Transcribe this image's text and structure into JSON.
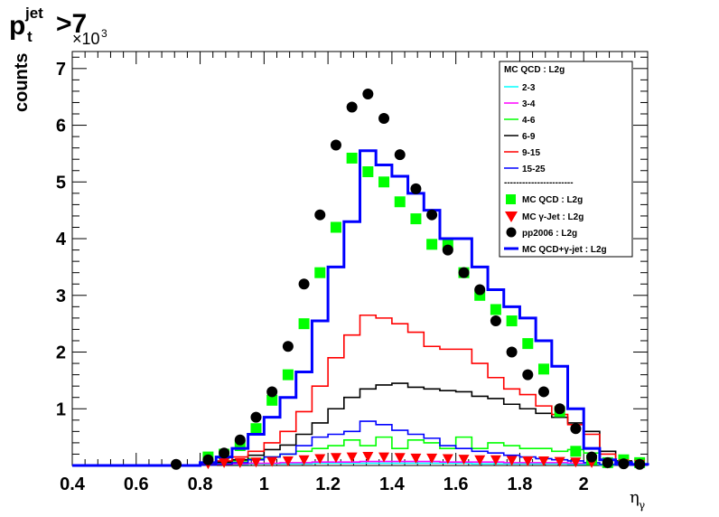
{
  "title": {
    "p": "p",
    "sup": "jet",
    "sub": "t",
    "suffix": ">7"
  },
  "colors": {
    "cyan": "#00ffff",
    "magenta": "#ff00ff",
    "green": "#00ff00",
    "black": "#000000",
    "red": "#ff0000",
    "blue": "#0000ff",
    "qcd_marker": "#00ff00",
    "gamma_marker": "#ff0000"
  },
  "chart_data": {
    "type": "line",
    "xlabel": "η",
    "xlabel_sub": "γ",
    "ylabel": "counts",
    "y_exponent": "×10",
    "y_exponent_power": "3",
    "xlim": [
      0.4,
      2.2
    ],
    "ylim": [
      0,
      7.3
    ],
    "x_ticks": [
      "0.4",
      "0.6",
      "0.8",
      "1",
      "1.2",
      "1.4",
      "1.6",
      "1.8",
      "2"
    ],
    "y_ticks": [
      "1",
      "2",
      "3",
      "4",
      "5",
      "6",
      "7"
    ],
    "bin_edges": [
      0.8,
      0.85,
      0.9,
      0.95,
      1.0,
      1.05,
      1.1,
      1.15,
      1.2,
      1.25,
      1.3,
      1.35,
      1.4,
      1.45,
      1.5,
      1.55,
      1.6,
      1.65,
      1.7,
      1.75,
      1.8,
      1.85,
      1.9,
      1.95,
      2.0,
      2.05,
      2.1,
      2.15,
      2.2
    ],
    "legend": {
      "header": "MC QCD : L2g",
      "entries": [
        "2-3",
        "3-4",
        "4-6",
        "6-9",
        "9-15",
        "15-25"
      ],
      "separator": "-----------------------",
      "markers": [
        "MC QCD : L2g",
        "MC γ-Jet : L2g",
        "pp2006 : L2g",
        "MC QCD+γ-jet : L2g"
      ]
    },
    "series": [
      {
        "name": "2-3",
        "style": "hist",
        "color": "#00ffff",
        "values": [
          0.01,
          0.02,
          0.02,
          0.03,
          0.03,
          0.03,
          0.03,
          0.04,
          0.04,
          0.04,
          0.04,
          0.04,
          0.04,
          0.04,
          0.04,
          0.04,
          0.04,
          0.03,
          0.03,
          0.03,
          0.03,
          0.03,
          0.03,
          0.02,
          0.02,
          0.01,
          0.01,
          0.01
        ]
      },
      {
        "name": "3-4",
        "style": "hist",
        "color": "#ff00ff",
        "values": [
          0.01,
          0.02,
          0.03,
          0.04,
          0.04,
          0.05,
          0.05,
          0.06,
          0.06,
          0.06,
          0.07,
          0.07,
          0.07,
          0.07,
          0.07,
          0.06,
          0.06,
          0.06,
          0.06,
          0.05,
          0.05,
          0.05,
          0.05,
          0.04,
          0.04,
          0.02,
          0.01,
          0.01
        ]
      },
      {
        "name": "4-6",
        "style": "hist",
        "color": "#00ff00",
        "values": [
          0.02,
          0.05,
          0.08,
          0.12,
          0.15,
          0.2,
          0.25,
          0.3,
          0.35,
          0.45,
          0.35,
          0.5,
          0.3,
          0.45,
          0.4,
          0.3,
          0.5,
          0.3,
          0.4,
          0.35,
          0.3,
          0.3,
          0.25,
          0.28,
          0.22,
          0.1,
          0.04,
          0.02
        ]
      },
      {
        "name": "6-9",
        "style": "hist",
        "color": "#000000",
        "values": [
          0.02,
          0.06,
          0.1,
          0.18,
          0.28,
          0.36,
          0.55,
          0.75,
          1.0,
          1.2,
          1.35,
          1.42,
          1.45,
          1.38,
          1.35,
          1.32,
          1.3,
          1.22,
          1.18,
          1.08,
          1.0,
          0.92,
          0.85,
          0.75,
          0.6,
          0.25,
          0.08,
          0.02
        ]
      },
      {
        "name": "9-15",
        "style": "hist",
        "color": "#ff0000",
        "values": [
          0.02,
          0.08,
          0.15,
          0.25,
          0.4,
          0.6,
          0.95,
          1.4,
          1.9,
          2.3,
          2.65,
          2.6,
          2.5,
          2.35,
          2.1,
          2.05,
          2.05,
          1.8,
          1.55,
          1.35,
          1.25,
          1.05,
          0.9,
          0.72,
          0.55,
          0.2,
          0.06,
          0.02
        ]
      },
      {
        "name": "15-25",
        "style": "hist",
        "color": "#0000ff",
        "values": [
          0.01,
          0.03,
          0.05,
          0.1,
          0.15,
          0.2,
          0.35,
          0.5,
          0.55,
          0.6,
          0.78,
          0.72,
          0.62,
          0.55,
          0.48,
          0.35,
          0.3,
          0.25,
          0.22,
          0.18,
          0.15,
          0.12,
          0.1,
          0.08,
          0.05,
          0.02,
          0.01,
          0.01
        ]
      },
      {
        "name": "MC QCD+γ-jet : L2g",
        "style": "hist-thick",
        "color": "#0000ff",
        "values": [
          0.05,
          0.15,
          0.3,
          0.55,
          0.85,
          1.2,
          1.65,
          2.55,
          3.5,
          4.3,
          5.55,
          5.3,
          5.1,
          4.8,
          4.5,
          4.0,
          4.0,
          3.5,
          3.1,
          2.8,
          2.6,
          2.2,
          1.75,
          1.0,
          0.3,
          0.1,
          0.05,
          0.02
        ]
      },
      {
        "name": "MC QCD : L2g",
        "style": "square",
        "color": "#00ff00",
        "x": [
          0.825,
          0.875,
          0.925,
          0.975,
          1.025,
          1.075,
          1.125,
          1.175,
          1.225,
          1.275,
          1.325,
          1.375,
          1.425,
          1.475,
          1.525,
          1.575,
          1.625,
          1.675,
          1.725,
          1.775,
          1.825,
          1.875,
          1.925,
          1.975,
          2.025,
          2.075,
          2.125,
          2.175
        ],
        "values": [
          0.15,
          0.2,
          0.35,
          0.65,
          1.15,
          1.6,
          2.5,
          3.4,
          4.2,
          5.42,
          5.18,
          5.0,
          4.65,
          4.35,
          3.9,
          3.9,
          3.4,
          3.0,
          2.75,
          2.55,
          2.15,
          1.7,
          0.95,
          0.25,
          0.1,
          0.05,
          0.1,
          0.05
        ]
      },
      {
        "name": "MC γ-Jet : L2g",
        "style": "triangle",
        "color": "#ff0000",
        "x": [
          0.825,
          0.875,
          0.925,
          0.975,
          1.025,
          1.075,
          1.125,
          1.175,
          1.225,
          1.275,
          1.325,
          1.375,
          1.425,
          1.475,
          1.525,
          1.575,
          1.625,
          1.675,
          1.725,
          1.775,
          1.825,
          1.875,
          1.925,
          1.975,
          2.025,
          2.075,
          2.125,
          2.175
        ],
        "values": [
          0.03,
          0.05,
          0.05,
          0.06,
          0.07,
          0.08,
          0.1,
          0.12,
          0.14,
          0.15,
          0.16,
          0.15,
          0.14,
          0.13,
          0.13,
          0.12,
          0.11,
          0.1,
          0.1,
          0.09,
          0.08,
          0.08,
          0.07,
          0.06,
          0.05,
          0.04,
          0.03,
          0.02
        ]
      },
      {
        "name": "pp2006 : L2g",
        "style": "circle",
        "color": "#000000",
        "x": [
          0.725,
          0.825,
          0.875,
          0.925,
          0.975,
          1.025,
          1.075,
          1.125,
          1.175,
          1.225,
          1.275,
          1.325,
          1.375,
          1.425,
          1.475,
          1.525,
          1.575,
          1.625,
          1.675,
          1.725,
          1.775,
          1.825,
          1.875,
          1.925,
          1.975,
          2.025,
          2.075,
          2.125,
          2.175
        ],
        "values": [
          0.02,
          0.1,
          0.22,
          0.45,
          0.85,
          1.3,
          2.1,
          3.2,
          4.42,
          5.65,
          6.32,
          6.55,
          6.12,
          5.48,
          4.88,
          4.42,
          3.8,
          3.4,
          3.1,
          2.55,
          2.0,
          1.6,
          1.3,
          1.0,
          0.65,
          0.15,
          0.05,
          0.03,
          0.02
        ]
      }
    ]
  }
}
